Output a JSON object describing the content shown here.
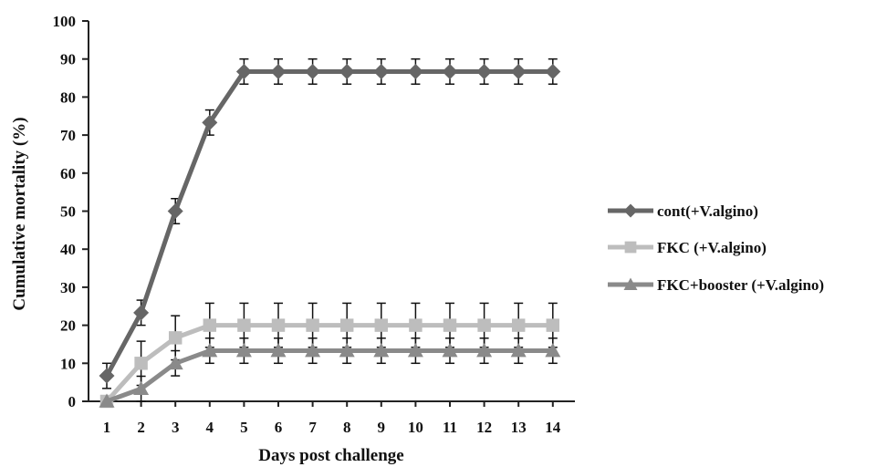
{
  "chart_data": {
    "type": "line",
    "title": "",
    "xlabel": "Days post challenge",
    "ylabel": "Cumulative mortality (%)",
    "x": [
      1,
      2,
      3,
      4,
      5,
      6,
      7,
      8,
      9,
      10,
      11,
      12,
      13,
      14
    ],
    "xticks": [
      "1",
      "2",
      "3",
      "4",
      "5",
      "6",
      "7",
      "8",
      "9",
      "10",
      "11",
      "12",
      "13",
      "14"
    ],
    "ylim": [
      0,
      100
    ],
    "yticks": [
      "0",
      "10",
      "20",
      "30",
      "40",
      "50",
      "60",
      "70",
      "80",
      "90",
      "100"
    ],
    "grid": false,
    "legend_position": "right",
    "series": [
      {
        "name": "cont(+V.algino)",
        "marker": "diamond",
        "color": "#666666",
        "values": [
          6.7,
          23.3,
          50,
          73.3,
          86.7,
          86.7,
          86.7,
          86.7,
          86.7,
          86.7,
          86.7,
          86.7,
          86.7,
          86.7
        ],
        "errors": [
          3.3,
          3.3,
          3.3,
          3.3,
          3.3,
          3.3,
          3.3,
          3.3,
          3.3,
          3.3,
          3.3,
          3.3,
          3.3,
          3.3
        ]
      },
      {
        "name": "FKC (+V.algino)",
        "marker": "square",
        "color": "#bdbdbd",
        "values": [
          0,
          10,
          16.7,
          20,
          20,
          20,
          20,
          20,
          20,
          20,
          20,
          20,
          20,
          20
        ],
        "errors": [
          0,
          5.8,
          5.8,
          5.8,
          5.8,
          5.8,
          5.8,
          5.8,
          5.8,
          5.8,
          5.8,
          5.8,
          5.8,
          5.8
        ]
      },
      {
        "name": "FKC+booster (+V.algino)",
        "marker": "triangle",
        "color": "#8a8a8a",
        "values": [
          0,
          3.3,
          10,
          13.3,
          13.3,
          13.3,
          13.3,
          13.3,
          13.3,
          13.3,
          13.3,
          13.3,
          13.3,
          13.3
        ],
        "errors": [
          0,
          3.3,
          3.3,
          3.3,
          3.3,
          3.3,
          3.3,
          3.3,
          3.3,
          3.3,
          3.3,
          3.3,
          3.3,
          3.3
        ]
      }
    ]
  }
}
